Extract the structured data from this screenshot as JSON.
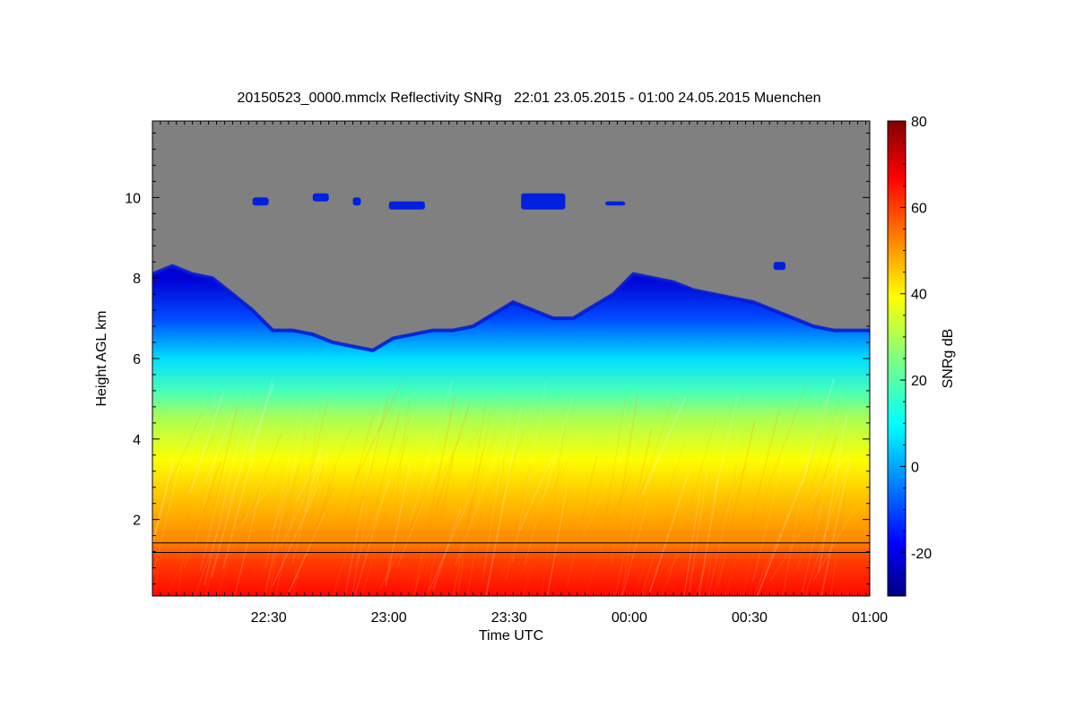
{
  "chart_data": {
    "type": "heatmap",
    "title": "20150523_0000.mmclx Reflectivity SNRg   22:01 23.05.2015 - 01:00 24.05.2015 Muenchen",
    "xlabel": "Time UTC",
    "ylabel": "Height AGL km",
    "x_range_minutes": [
      0,
      179
    ],
    "x_start": "22:01",
    "x_end": "01:00",
    "x_ticks": [
      {
        "label": "22:30",
        "minute": 29
      },
      {
        "label": "23:00",
        "minute": 59
      },
      {
        "label": "23:30",
        "minute": 89
      },
      {
        "label": "00:00",
        "minute": 119
      },
      {
        "label": "00:30",
        "minute": 149
      },
      {
        "label": "01:00",
        "minute": 179
      }
    ],
    "y_range_km": [
      0.1,
      11.9
    ],
    "y_ticks": [
      {
        "label": "2",
        "value": 2
      },
      {
        "label": "4",
        "value": 4
      },
      {
        "label": "6",
        "value": 6
      },
      {
        "label": "8",
        "value": 8
      },
      {
        "label": "10",
        "value": 10
      }
    ],
    "colorbar": {
      "label": "SNRg dB",
      "range": [
        -30,
        80
      ],
      "ticks": [
        {
          "label": "-20",
          "value": -20
        },
        {
          "label": "0",
          "value": 0
        },
        {
          "label": "20",
          "value": 20
        },
        {
          "label": "40",
          "value": 40
        },
        {
          "label": "60",
          "value": 60
        },
        {
          "label": "80",
          "value": 80
        }
      ]
    },
    "no_signal_color": "#808080",
    "cloud_top_km": [
      [
        0,
        8.1
      ],
      [
        5,
        8.3
      ],
      [
        10,
        8.1
      ],
      [
        15,
        8.0
      ],
      [
        20,
        7.6
      ],
      [
        25,
        7.2
      ],
      [
        30,
        6.7
      ],
      [
        35,
        6.7
      ],
      [
        40,
        6.6
      ],
      [
        45,
        6.4
      ],
      [
        50,
        6.3
      ],
      [
        55,
        6.2
      ],
      [
        60,
        6.5
      ],
      [
        65,
        6.6
      ],
      [
        70,
        6.7
      ],
      [
        75,
        6.7
      ],
      [
        80,
        6.8
      ],
      [
        85,
        7.1
      ],
      [
        90,
        7.4
      ],
      [
        95,
        7.2
      ],
      [
        100,
        7.0
      ],
      [
        105,
        7.0
      ],
      [
        110,
        7.3
      ],
      [
        115,
        7.6
      ],
      [
        120,
        8.1
      ],
      [
        125,
        8.0
      ],
      [
        130,
        7.9
      ],
      [
        135,
        7.7
      ],
      [
        140,
        7.6
      ],
      [
        145,
        7.5
      ],
      [
        150,
        7.4
      ],
      [
        155,
        7.2
      ],
      [
        160,
        7.0
      ],
      [
        165,
        6.8
      ],
      [
        170,
        6.7
      ],
      [
        175,
        6.7
      ],
      [
        179,
        6.7
      ]
    ],
    "profile_snr_db": [
      {
        "height_km": 0.1,
        "snr": 66
      },
      {
        "height_km": 1.0,
        "snr": 60
      },
      {
        "height_km": 1.5,
        "snr": 52
      },
      {
        "height_km": 2.5,
        "snr": 46
      },
      {
        "height_km": 3.5,
        "snr": 39
      },
      {
        "height_km": 4.5,
        "snr": 30
      },
      {
        "height_km": 5.2,
        "snr": 18
      },
      {
        "height_km": 6.0,
        "snr": 6
      },
      {
        "height_km": 7.0,
        "snr": -10
      },
      {
        "height_km": 8.0,
        "snr": -22
      }
    ],
    "lines": [
      {
        "name": "upper-line",
        "height_km": 1.42
      },
      {
        "name": "lower-line",
        "height_km": 1.18
      }
    ],
    "upper_cloud_patches": [
      {
        "t0": 25,
        "t1": 29,
        "h0": 9.8,
        "h1": 10.0
      },
      {
        "t0": 40,
        "t1": 44,
        "h0": 9.9,
        "h1": 10.1
      },
      {
        "t0": 50,
        "t1": 52,
        "h0": 9.8,
        "h1": 10.0
      },
      {
        "t0": 59,
        "t1": 68,
        "h0": 9.7,
        "h1": 9.9
      },
      {
        "t0": 92,
        "t1": 103,
        "h0": 9.7,
        "h1": 10.1
      },
      {
        "t0": 113,
        "t1": 118,
        "h0": 9.8,
        "h1": 9.9
      },
      {
        "t0": 155,
        "t1": 158,
        "h0": 8.2,
        "h1": 8.4
      }
    ]
  }
}
